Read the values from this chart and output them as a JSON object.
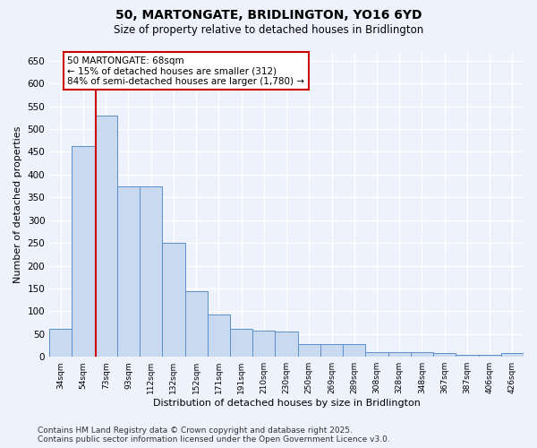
{
  "title_line1": "50, MARTONGATE, BRIDLINGTON, YO16 6YD",
  "title_line2": "Size of property relative to detached houses in Bridlington",
  "xlabel": "Distribution of detached houses by size in Bridlington",
  "ylabel": "Number of detached properties",
  "categories": [
    "34sqm",
    "54sqm",
    "73sqm",
    "93sqm",
    "112sqm",
    "132sqm",
    "152sqm",
    "171sqm",
    "191sqm",
    "210sqm",
    "230sqm",
    "250sqm",
    "269sqm",
    "289sqm",
    "308sqm",
    "328sqm",
    "348sqm",
    "367sqm",
    "387sqm",
    "406sqm",
    "426sqm"
  ],
  "values": [
    62,
    462,
    530,
    375,
    375,
    250,
    143,
    93,
    62,
    57,
    55,
    27,
    27,
    27,
    10,
    10,
    10,
    8,
    5,
    5,
    8
  ],
  "bar_color": "#c9d9ef",
  "bar_edge_color": "#5b8fca",
  "vline_x": 1.55,
  "vline_color": "#cc0000",
  "annotation_text": "50 MARTONGATE: 68sqm\n← 15% of detached houses are smaller (312)\n84% of semi-detached houses are larger (1,780) →",
  "annotation_box_color": "#ffffff",
  "annotation_box_edge": "#cc0000",
  "annotation_fontsize": 7.5,
  "ylim": [
    0,
    670
  ],
  "yticks": [
    0,
    50,
    100,
    150,
    200,
    250,
    300,
    350,
    400,
    450,
    500,
    550,
    600,
    650
  ],
  "background_color": "#eef2fc",
  "grid_color": "#ffffff",
  "footer_line1": "Contains HM Land Registry data © Crown copyright and database right 2025.",
  "footer_line2": "Contains public sector information licensed under the Open Government Licence v3.0.",
  "footer_fontsize": 6.5,
  "title_fontsize": 10,
  "subtitle_fontsize": 8.5
}
